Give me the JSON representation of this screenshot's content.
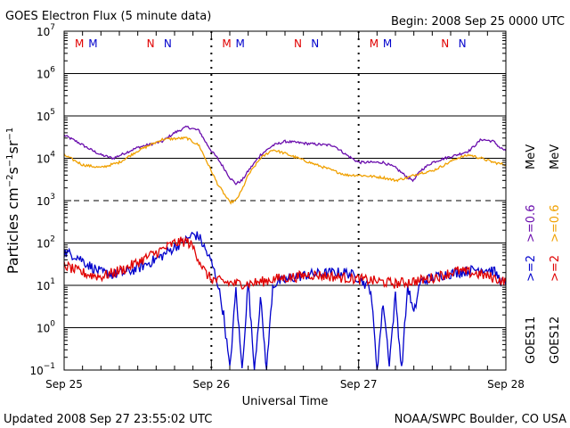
{
  "header": {
    "title": "GOES Electron Flux (5 minute data)",
    "begin": "Begin: 2008 Sep 25 0000 UTC"
  },
  "footer": {
    "updated": "Updated 2008 Sep 27 23:55:02 UTC",
    "credit": "NOAA/SWPC Boulder, CO USA"
  },
  "chart_data": {
    "type": "line",
    "title": "GOES Electron Flux (5 minute data)",
    "xlabel": "Universal Time",
    "ylabel": "Particles cm⁻²s⁻¹sr⁻¹",
    "yscale": "log",
    "ylim": [
      0.1,
      10000000
    ],
    "xlim": [
      0,
      72
    ],
    "x_unit": "hours since 2008 Sep 25 0000 UTC",
    "x_ticks": [
      {
        "x": 0,
        "label": "Sep 25"
      },
      {
        "x": 24,
        "label": "Sep 26"
      },
      {
        "x": 48,
        "label": "Sep 27"
      },
      {
        "x": 72,
        "label": "Sep 28"
      }
    ],
    "y_ticks": [
      {
        "exp": 7,
        "base": "10",
        "sup": "7"
      },
      {
        "exp": 6,
        "base": "10",
        "sup": "6"
      },
      {
        "exp": 5,
        "base": "10",
        "sup": "5"
      },
      {
        "exp": 4,
        "base": "10",
        "sup": "4"
      },
      {
        "exp": 3,
        "base": "10",
        "sup": "3"
      },
      {
        "exp": 2,
        "base": "10",
        "sup": "2"
      },
      {
        "exp": 1,
        "base": "10",
        "sup": "1"
      },
      {
        "exp": 0,
        "base": "10",
        "sup": "0"
      },
      {
        "exp": -1,
        "base": "10",
        "sup": "−1"
      }
    ],
    "grid": true,
    "threshold_line_at": 1000,
    "day_markers": [
      {
        "day": 0,
        "labels": [
          {
            "text": "M",
            "x": 2.5,
            "color": "#e00000"
          },
          {
            "text": "M",
            "x": 4.7,
            "color": "#0000cc"
          },
          {
            "text": "N",
            "x": 14.1,
            "color": "#e00000"
          },
          {
            "text": "N",
            "x": 16.9,
            "color": "#0000cc"
          }
        ]
      },
      {
        "day": 1,
        "labels": [
          {
            "text": "M",
            "x": 26.5,
            "color": "#e00000"
          },
          {
            "text": "M",
            "x": 28.7,
            "color": "#0000cc"
          },
          {
            "text": "N",
            "x": 38.1,
            "color": "#e00000"
          },
          {
            "text": "N",
            "x": 40.9,
            "color": "#0000cc"
          }
        ]
      },
      {
        "day": 2,
        "labels": [
          {
            "text": "M",
            "x": 50.5,
            "color": "#e00000"
          },
          {
            "text": "M",
            "x": 52.7,
            "color": "#0000cc"
          },
          {
            "text": "N",
            "x": 62.1,
            "color": "#e00000"
          },
          {
            "text": "N",
            "x": 64.9,
            "color": "#0000cc"
          }
        ]
      }
    ],
    "legend": {
      "placement": "right",
      "goes11": ">=2   >=0.6  MeV",
      "goes12": ">=2   >=0.6  MeV",
      "sat11": "GOES11",
      "sat12": "GOES12",
      "gt2": ">=2",
      "gt06": ">=0.6",
      "mev": "MeV"
    },
    "series": [
      {
        "name": "GOES11 >=0.6 MeV",
        "color": "#6a0dad",
        "points": [
          [
            0,
            35000
          ],
          [
            2,
            25000
          ],
          [
            4,
            17000
          ],
          [
            6,
            12000
          ],
          [
            8,
            10000
          ],
          [
            12,
            18000
          ],
          [
            16,
            25000
          ],
          [
            18,
            40000
          ],
          [
            20,
            55000
          ],
          [
            22,
            45000
          ],
          [
            23,
            25000
          ],
          [
            24,
            15000
          ],
          [
            25,
            10000
          ],
          [
            26,
            6000
          ],
          [
            27,
            3500
          ],
          [
            28,
            2500
          ],
          [
            29,
            3000
          ],
          [
            30,
            5000
          ],
          [
            32,
            12000
          ],
          [
            34,
            20000
          ],
          [
            36,
            25000
          ],
          [
            40,
            22000
          ],
          [
            44,
            20000
          ],
          [
            46,
            12000
          ],
          [
            48,
            8000
          ],
          [
            52,
            8000
          ],
          [
            54,
            6000
          ],
          [
            56,
            3500
          ],
          [
            57,
            3000
          ],
          [
            58,
            5000
          ],
          [
            60,
            8000
          ],
          [
            62,
            10000
          ],
          [
            64,
            12000
          ],
          [
            66,
            15000
          ],
          [
            68,
            28000
          ],
          [
            70,
            25000
          ],
          [
            71,
            18000
          ],
          [
            72,
            15000
          ]
        ]
      },
      {
        "name": "GOES12 >=0.6 MeV",
        "color": "#f0a000",
        "points": [
          [
            0,
            12000
          ],
          [
            3,
            7000
          ],
          [
            6,
            6000
          ],
          [
            9,
            8000
          ],
          [
            12,
            15000
          ],
          [
            16,
            28000
          ],
          [
            20,
            30000
          ],
          [
            22,
            20000
          ],
          [
            23,
            10000
          ],
          [
            24,
            5000
          ],
          [
            25,
            2500
          ],
          [
            26,
            1500
          ],
          [
            27,
            900
          ],
          [
            28,
            1000
          ],
          [
            29,
            1800
          ],
          [
            30,
            4000
          ],
          [
            32,
            10000
          ],
          [
            34,
            16000
          ],
          [
            36,
            13000
          ],
          [
            40,
            8000
          ],
          [
            44,
            5000
          ],
          [
            46,
            4000
          ],
          [
            48,
            4000
          ],
          [
            52,
            3500
          ],
          [
            54,
            3000
          ],
          [
            56,
            3500
          ],
          [
            58,
            4500
          ],
          [
            60,
            5000
          ],
          [
            62,
            7000
          ],
          [
            64,
            10000
          ],
          [
            66,
            12000
          ],
          [
            68,
            10000
          ],
          [
            70,
            8000
          ],
          [
            72,
            7000
          ]
        ]
      },
      {
        "name": "GOES11 >=2 MeV",
        "color": "#0000cc",
        "points": [
          [
            0,
            60
          ],
          [
            2,
            50
          ],
          [
            4,
            30
          ],
          [
            6,
            20
          ],
          [
            8,
            18
          ],
          [
            10,
            20
          ],
          [
            12,
            25
          ],
          [
            14,
            35
          ],
          [
            16,
            50
          ],
          [
            18,
            80
          ],
          [
            20,
            120
          ],
          [
            21,
            160
          ],
          [
            22,
            140
          ],
          [
            23,
            70
          ],
          [
            24,
            35
          ],
          [
            25,
            12
          ],
          [
            26,
            2
          ],
          [
            27,
            0.1
          ],
          [
            28,
            8
          ],
          [
            29,
            0.1
          ],
          [
            30,
            12
          ],
          [
            31,
            0.1
          ],
          [
            32,
            5
          ],
          [
            33,
            0.1
          ],
          [
            34,
            10
          ],
          [
            35,
            12
          ],
          [
            38,
            16
          ],
          [
            40,
            18
          ],
          [
            44,
            20
          ],
          [
            46,
            20
          ],
          [
            48,
            15
          ],
          [
            50,
            8
          ],
          [
            51,
            0.1
          ],
          [
            52,
            4
          ],
          [
            53,
            0.15
          ],
          [
            54,
            6
          ],
          [
            55,
            0.1
          ],
          [
            56,
            10
          ],
          [
            57,
            2
          ],
          [
            58,
            12
          ],
          [
            60,
            15
          ],
          [
            62,
            18
          ],
          [
            64,
            20
          ],
          [
            66,
            22
          ],
          [
            68,
            25
          ],
          [
            70,
            22
          ],
          [
            71,
            14
          ],
          [
            72,
            10
          ]
        ]
      },
      {
        "name": "GOES12 >=2 MeV",
        "color": "#e00000",
        "points": [
          [
            0,
            30
          ],
          [
            2,
            22
          ],
          [
            4,
            18
          ],
          [
            6,
            16
          ],
          [
            8,
            20
          ],
          [
            10,
            25
          ],
          [
            12,
            35
          ],
          [
            14,
            50
          ],
          [
            16,
            70
          ],
          [
            18,
            100
          ],
          [
            20,
            110
          ],
          [
            21,
            80
          ],
          [
            22,
            40
          ],
          [
            23,
            20
          ],
          [
            24,
            14
          ],
          [
            26,
            12
          ],
          [
            28,
            11
          ],
          [
            30,
            11
          ],
          [
            32,
            12
          ],
          [
            34,
            14
          ],
          [
            36,
            15
          ],
          [
            38,
            16
          ],
          [
            40,
            18
          ],
          [
            42,
            17
          ],
          [
            44,
            16
          ],
          [
            46,
            15
          ],
          [
            48,
            14
          ],
          [
            50,
            13
          ],
          [
            52,
            12
          ],
          [
            54,
            11
          ],
          [
            56,
            12
          ],
          [
            58,
            13
          ],
          [
            60,
            15
          ],
          [
            62,
            18
          ],
          [
            64,
            22
          ],
          [
            66,
            20
          ],
          [
            68,
            18
          ],
          [
            70,
            15
          ],
          [
            72,
            12
          ]
        ]
      }
    ]
  }
}
